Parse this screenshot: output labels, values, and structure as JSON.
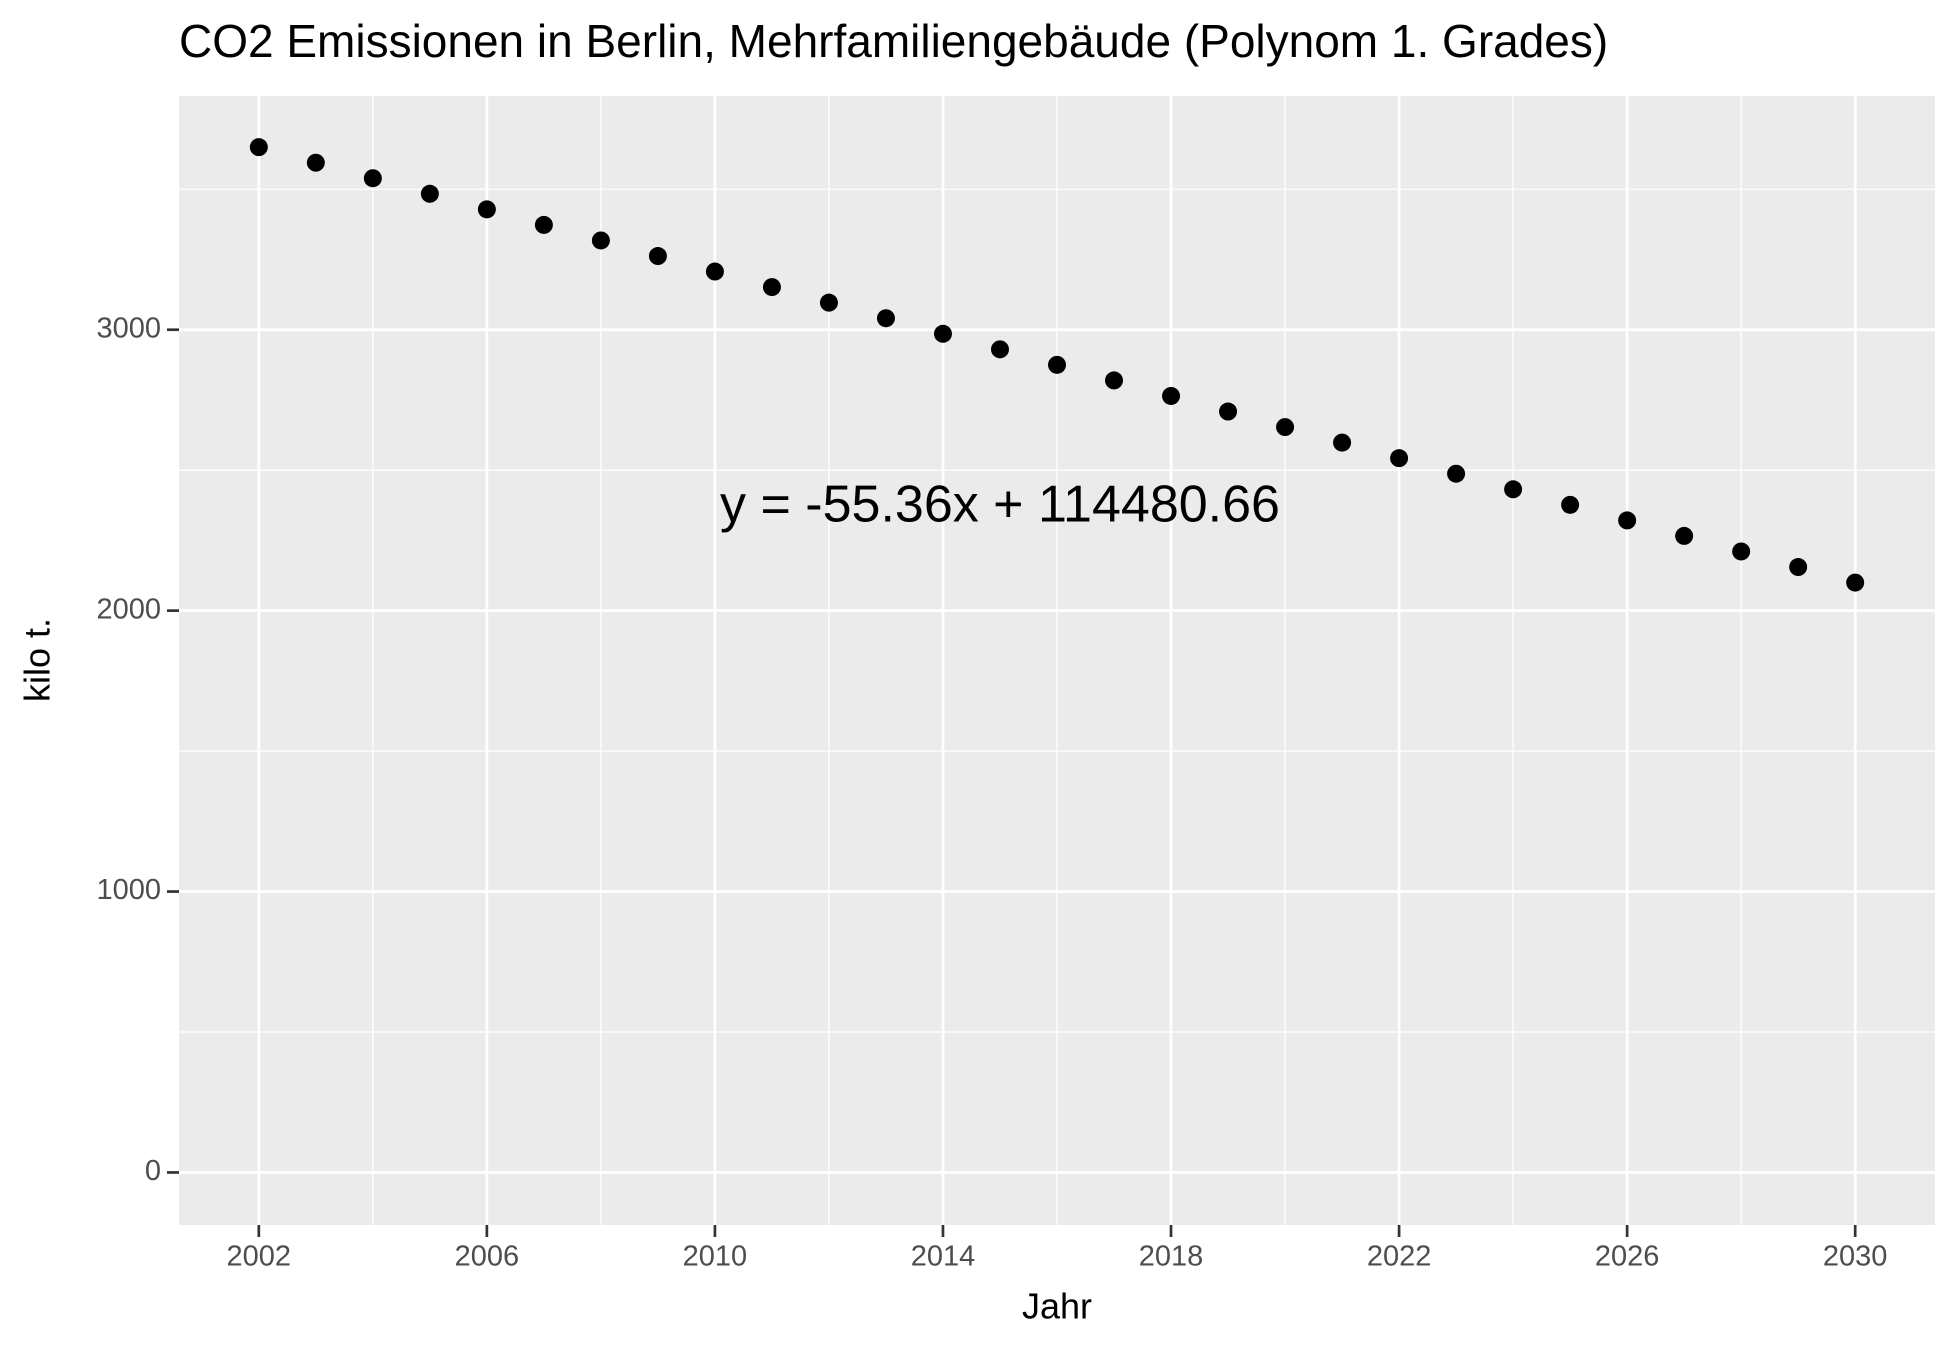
{
  "chart_data": {
    "type": "scatter",
    "title": "CO2 Emissionen in Berlin, Mehrfamiliengebäude (Polynom 1. Grades)",
    "x_label": "Jahr",
    "y_label": "kilo t.",
    "annotation": "y = -55.36x + 114480.66",
    "x": [
      2002,
      2003,
      2004,
      2005,
      2006,
      2007,
      2008,
      2009,
      2010,
      2011,
      2012,
      2013,
      2014,
      2015,
      2016,
      2017,
      2018,
      2019,
      2020,
      2021,
      2022,
      2023,
      2024,
      2025,
      2026,
      2027,
      2028,
      2029,
      2030
    ],
    "series": [
      {
        "color": "#000000",
        "values": [
          3649.94,
          3594.58,
          3539.22,
          3483.86,
          3428.5,
          3373.14,
          3317.78,
          3262.42,
          3207.06,
          3151.7,
          3096.34,
          3040.98,
          2985.62,
          2930.26,
          2874.9,
          2819.54,
          2764.18,
          2708.82,
          2653.46,
          2598.1,
          2542.74,
          2487.38,
          2432.02,
          2376.66,
          2321.3,
          2265.94,
          2210.58,
          2155.22,
          2099.86
        ]
      }
    ],
    "xlim": [
      2000.6,
      2031.4
    ],
    "ylim": [
      -187,
      3832
    ],
    "xticks": [
      2002,
      2006,
      2010,
      2014,
      2018,
      2022,
      2026,
      2030
    ],
    "yticks": [
      0,
      1000,
      2000,
      3000
    ],
    "grid": true,
    "minor_grid": true
  }
}
